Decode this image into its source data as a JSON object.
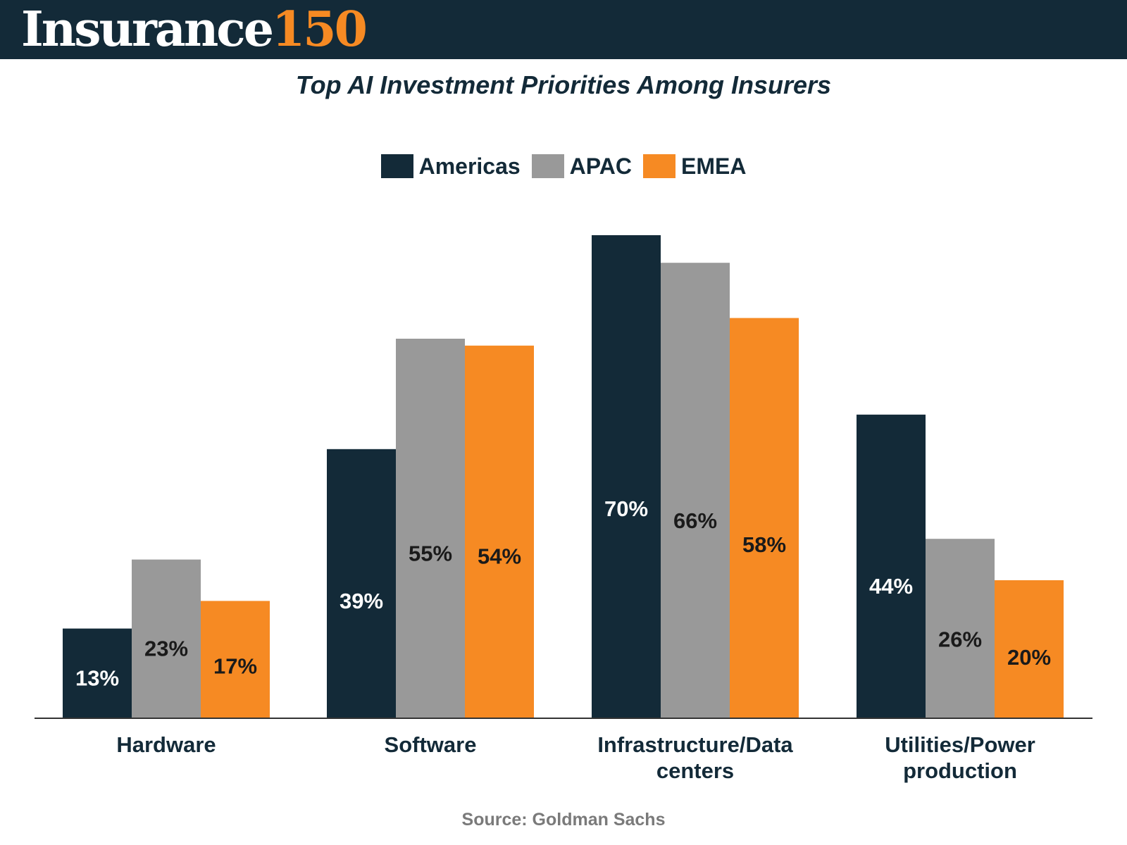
{
  "header": {
    "logo_word": "Insurance",
    "logo_number": "150"
  },
  "colors": {
    "header_bg": "#132a38",
    "americas": "#132a38",
    "apac": "#999999",
    "emea": "#f68a23",
    "label_light": "#ffffff",
    "label_dark": "#1a1a1a"
  },
  "chart_data": {
    "type": "bar",
    "title": "Top AI Investment Priorities Among Insurers",
    "categories": [
      [
        "Hardware"
      ],
      [
        "Software"
      ],
      [
        "Infrastructure/Data",
        "centers"
      ],
      [
        "Utilities/Power",
        "production"
      ]
    ],
    "series": [
      {
        "name": "Americas",
        "values": [
          13,
          39,
          70,
          44
        ],
        "labels": [
          "13%",
          "39%",
          "70%",
          "44%"
        ]
      },
      {
        "name": "APAC",
        "values": [
          23,
          55,
          66,
          26
        ],
        "labels": [
          "23%",
          "55%",
          "66%",
          "26%"
        ]
      },
      {
        "name": "EMEA",
        "values": [
          17,
          54,
          58,
          20
        ],
        "labels": [
          "17%",
          "54%",
          "58%",
          "20%"
        ]
      }
    ],
    "ylim": [
      0,
      70
    ],
    "legend_position": "top-center",
    "grid": false,
    "source": "Source: Goldman Sachs"
  }
}
